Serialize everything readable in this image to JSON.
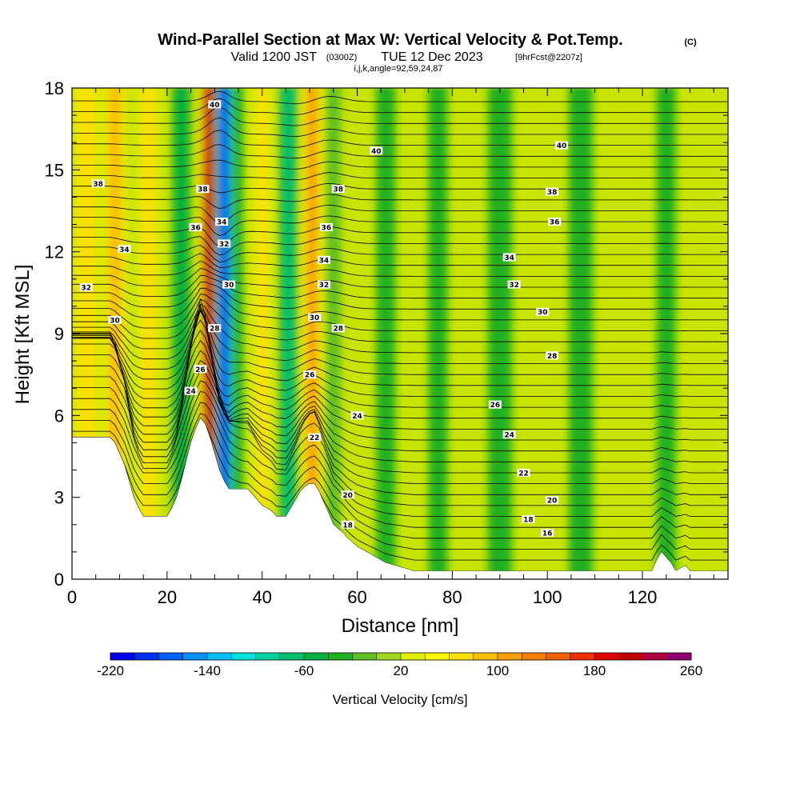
{
  "figure": {
    "title": "Wind-Parallel Section at Max W: Vertical Velocity & Pot.Temp.",
    "title_mark": "(C)",
    "subtitle_pre": "Valid 1200 JST",
    "subtitle_utc": "(0300Z)",
    "subtitle_date": "TUE 12 Dec 2023",
    "subtitle_fcst": "[9hrFcst@2207z]",
    "subtitle2": "i,j,k,angle=92,59,24,87"
  },
  "chart_data": {
    "type": "heatmap",
    "xlabel": "Distance [nm]",
    "ylabel": "Height [Kft MSL]",
    "xlim": [
      0,
      138
    ],
    "ylim": [
      0,
      18
    ],
    "x_ticks": [
      0,
      20,
      40,
      60,
      80,
      100,
      120
    ],
    "y_ticks": [
      0,
      3,
      6,
      9,
      12,
      15,
      18
    ],
    "grid": false,
    "colorbar": {
      "label": "Vertical Velocity [cm/s]",
      "min": -220,
      "max": 260,
      "step": 20,
      "tick_labels": [
        -220,
        -140,
        -60,
        20,
        100,
        180,
        260
      ],
      "colors": [
        "#0000f0",
        "#0030f8",
        "#0060f8",
        "#0090f8",
        "#00c0f8",
        "#00e0e0",
        "#00d0a0",
        "#00c070",
        "#00b040",
        "#20b020",
        "#60c020",
        "#a0d820",
        "#e0f000",
        "#f8f800",
        "#f8e000",
        "#f8c000",
        "#f8a000",
        "#f88000",
        "#f06000",
        "#f03000",
        "#e00000",
        "#c00000",
        "#b00040",
        "#900070",
        "#600090"
      ]
    },
    "isentropes": {
      "variable": "potential temperature",
      "levels": [
        16,
        18,
        20,
        22,
        24,
        26,
        28,
        30,
        32,
        34,
        36,
        38,
        40
      ],
      "labels": [
        {
          "text": "40",
          "x": 30,
          "y": 17.4
        },
        {
          "text": "40",
          "x": 64,
          "y": 15.7
        },
        {
          "text": "40",
          "x": 103,
          "y": 15.9
        },
        {
          "text": "38",
          "x": 5.5,
          "y": 14.5
        },
        {
          "text": "38",
          "x": 27.5,
          "y": 14.3
        },
        {
          "text": "38",
          "x": 56,
          "y": 14.3
        },
        {
          "text": "38",
          "x": 101,
          "y": 14.2
        },
        {
          "text": "36",
          "x": 26,
          "y": 12.9
        },
        {
          "text": "36",
          "x": 53.5,
          "y": 12.9
        },
        {
          "text": "36",
          "x": 101.5,
          "y": 13.1
        },
        {
          "text": "34",
          "x": 31.5,
          "y": 13.1
        },
        {
          "text": "34",
          "x": 11,
          "y": 12.1
        },
        {
          "text": "34",
          "x": 53,
          "y": 11.7
        },
        {
          "text": "34",
          "x": 92,
          "y": 11.8
        },
        {
          "text": "32",
          "x": 32,
          "y": 12.3
        },
        {
          "text": "32",
          "x": 3,
          "y": 10.7
        },
        {
          "text": "32",
          "x": 53,
          "y": 10.8
        },
        {
          "text": "32",
          "x": 93,
          "y": 10.8
        },
        {
          "text": "30",
          "x": 33,
          "y": 10.8
        },
        {
          "text": "30",
          "x": 9,
          "y": 9.5
        },
        {
          "text": "30",
          "x": 51,
          "y": 9.6
        },
        {
          "text": "30",
          "x": 99,
          "y": 9.8
        },
        {
          "text": "28",
          "x": 30,
          "y": 9.2
        },
        {
          "text": "28",
          "x": 56,
          "y": 9.2
        },
        {
          "text": "28",
          "x": 101,
          "y": 8.2
        },
        {
          "text": "26",
          "x": 27,
          "y": 7.7
        },
        {
          "text": "26",
          "x": 50,
          "y": 7.5
        },
        {
          "text": "26",
          "x": 89,
          "y": 6.4
        },
        {
          "text": "24",
          "x": 25,
          "y": 6.9
        },
        {
          "text": "24",
          "x": 60,
          "y": 6.0
        },
        {
          "text": "24",
          "x": 92,
          "y": 5.3
        },
        {
          "text": "22",
          "x": 51,
          "y": 5.2
        },
        {
          "text": "22",
          "x": 95,
          "y": 3.9
        },
        {
          "text": "20",
          "x": 58,
          "y": 3.1
        },
        {
          "text": "20",
          "x": 101,
          "y": 2.9
        },
        {
          "text": "18",
          "x": 58,
          "y": 2.0
        },
        {
          "text": "18",
          "x": 96,
          "y": 2.2
        },
        {
          "text": "16",
          "x": 100,
          "y": 1.7
        }
      ]
    },
    "velocity_bands": [
      {
        "x": 3,
        "w": 4,
        "v": 60
      },
      {
        "x": 9,
        "w": 3,
        "v": 80
      },
      {
        "x": 16,
        "w": 3,
        "v": 60
      },
      {
        "x": 23,
        "w": 2.5,
        "v": -60
      },
      {
        "x": 29,
        "w": 2,
        "v": 200
      },
      {
        "x": 32,
        "w": 2.2,
        "v": -180
      },
      {
        "x": 35,
        "w": 2,
        "v": -40
      },
      {
        "x": 40,
        "w": 2.5,
        "v": 60
      },
      {
        "x": 45.5,
        "w": 2.5,
        "v": -80
      },
      {
        "x": 50.5,
        "w": 2.5,
        "v": 100
      },
      {
        "x": 55,
        "w": 3,
        "v": -20
      },
      {
        "x": 66,
        "w": 4,
        "v": -40
      },
      {
        "x": 77,
        "w": 4,
        "v": -40
      },
      {
        "x": 90,
        "w": 5,
        "v": -40
      },
      {
        "x": 107,
        "w": 5,
        "v": -40
      },
      {
        "x": 125,
        "w": 4,
        "v": -40
      }
    ],
    "terrain": [
      [
        0,
        5.2
      ],
      [
        8,
        5.2
      ],
      [
        9,
        5.0
      ],
      [
        10,
        4.6
      ],
      [
        11,
        4.2
      ],
      [
        12,
        3.6
      ],
      [
        13,
        3.0
      ],
      [
        14,
        2.6
      ],
      [
        15,
        2.3
      ],
      [
        20,
        2.3
      ],
      [
        21,
        2.6
      ],
      [
        22,
        3.0
      ],
      [
        23,
        3.6
      ],
      [
        24,
        4.3
      ],
      [
        25,
        5.0
      ],
      [
        26,
        5.5
      ],
      [
        27,
        5.9
      ],
      [
        28,
        5.7
      ],
      [
        29,
        5.2
      ],
      [
        30,
        4.6
      ],
      [
        31,
        4.0
      ],
      [
        32,
        3.6
      ],
      [
        33,
        3.3
      ],
      [
        37,
        3.3
      ],
      [
        38,
        3.1
      ],
      [
        39,
        2.9
      ],
      [
        40,
        2.7
      ],
      [
        41,
        2.6
      ],
      [
        42,
        2.5
      ],
      [
        43,
        2.3
      ],
      [
        45,
        2.3
      ],
      [
        46,
        2.6
      ],
      [
        47,
        2.9
      ],
      [
        48,
        3.2
      ],
      [
        49,
        3.4
      ],
      [
        50,
        3.5
      ],
      [
        51,
        3.5
      ],
      [
        52,
        3.2
      ],
      [
        53,
        2.8
      ],
      [
        54,
        2.4
      ],
      [
        55,
        2.0
      ],
      [
        57,
        1.7
      ],
      [
        58,
        1.5
      ],
      [
        60,
        1.2
      ],
      [
        62,
        1.0
      ],
      [
        64,
        0.8
      ],
      [
        66,
        0.6
      ],
      [
        68,
        0.5
      ],
      [
        70,
        0.4
      ],
      [
        72,
        0.3
      ],
      [
        122,
        0.3
      ],
      [
        123,
        0.7
      ],
      [
        124,
        1.0
      ],
      [
        125,
        0.8
      ],
      [
        126,
        0.6
      ],
      [
        127,
        0.3
      ],
      [
        129,
        0.5
      ],
      [
        130,
        0.3
      ],
      [
        138,
        0.3
      ]
    ]
  }
}
